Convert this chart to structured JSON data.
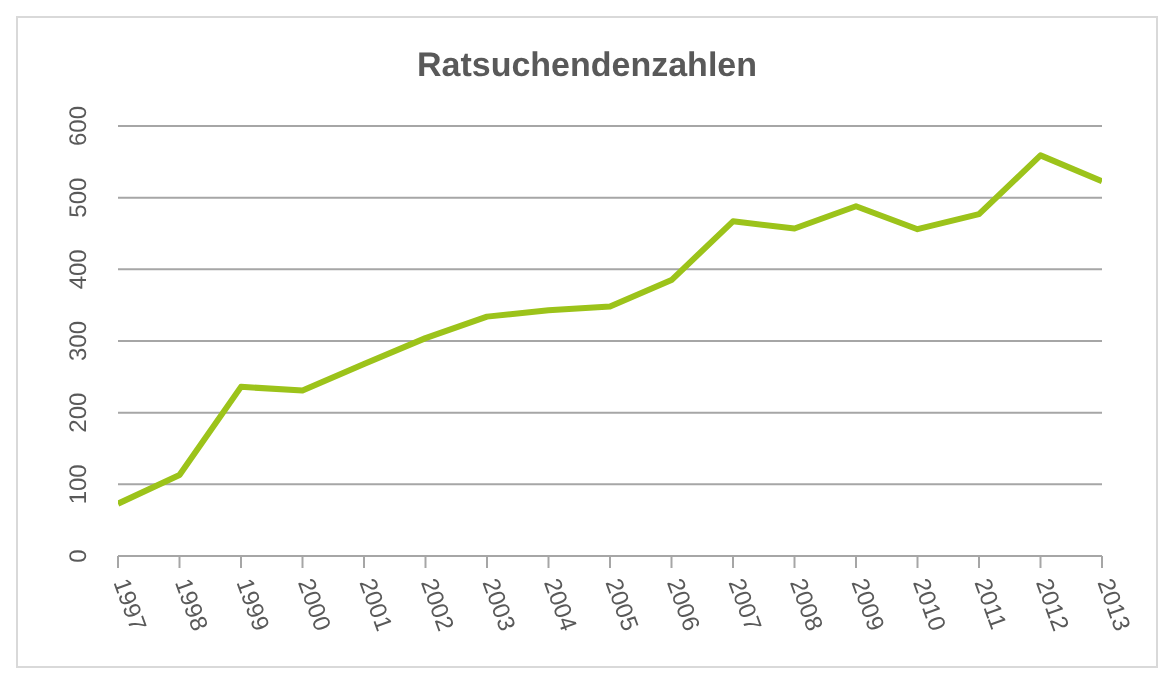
{
  "chart_data": {
    "type": "line",
    "title": "Ratsuchendenzahlen",
    "categories": [
      "1997",
      "1998",
      "1999",
      "2000",
      "2001",
      "2002",
      "2003",
      "2004",
      "2005",
      "2006",
      "2007",
      "2008",
      "2009",
      "2010",
      "2011",
      "2012",
      "2013"
    ],
    "series": [
      {
        "color": "#9cc31a",
        "values": [
          73,
          113,
          236,
          231,
          268,
          304,
          334,
          343,
          348,
          385,
          467,
          457,
          488,
          456,
          477,
          559,
          523
        ]
      }
    ],
    "ylim": [
      0,
      600
    ],
    "yticks": [
      0,
      100,
      200,
      300,
      400,
      500,
      600
    ],
    "grid": "y",
    "legend": false,
    "marker": "none",
    "line_style": "solid"
  }
}
